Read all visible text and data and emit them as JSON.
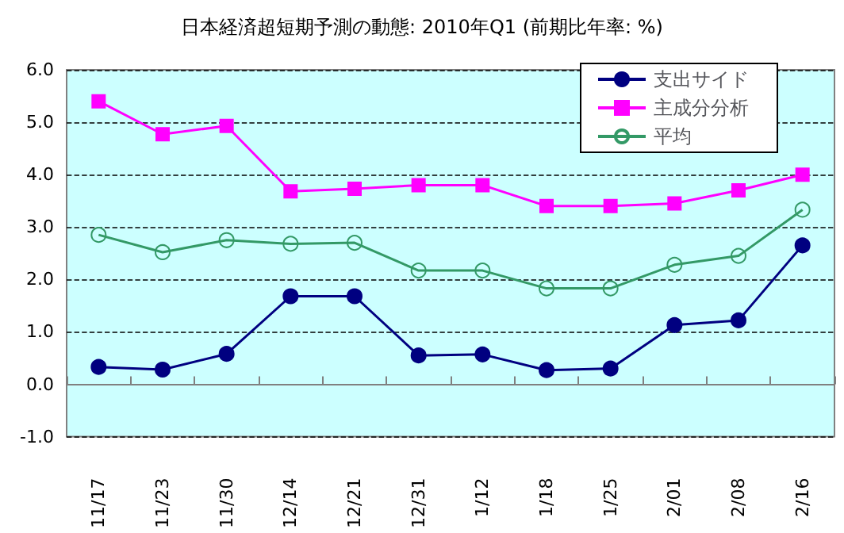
{
  "chart_data": {
    "type": "line",
    "title": "日本経済超短期予測の動態: 2010年Q1 (前期比年率: %)",
    "categories": [
      "11/17",
      "11/23",
      "11/30",
      "12/14",
      "12/21",
      "12/31",
      "1/12",
      "1/18",
      "1/25",
      "2/01",
      "2/08",
      "2/16"
    ],
    "series": [
      {
        "name": "支出サイド",
        "color": "#000080",
        "marker": "circle",
        "values": [
          0.33,
          0.28,
          0.58,
          1.68,
          1.68,
          0.55,
          0.57,
          0.27,
          0.3,
          1.13,
          1.22,
          2.65
        ]
      },
      {
        "name": "主成分分析",
        "color": "#ff00ff",
        "marker": "square",
        "values": [
          5.4,
          4.77,
          4.93,
          3.68,
          3.73,
          3.8,
          3.8,
          3.4,
          3.4,
          3.45,
          3.7,
          4.0
        ]
      },
      {
        "name": "平均",
        "color": "#339966",
        "marker": "emptyCircle",
        "values": [
          2.85,
          2.52,
          2.75,
          2.68,
          2.7,
          2.17,
          2.17,
          1.83,
          1.83,
          2.28,
          2.45,
          3.33
        ]
      }
    ],
    "ylim": [
      -1,
      6
    ],
    "yticks": [
      {
        "value": -1,
        "label": "-1.0"
      },
      {
        "value": 0,
        "label": "0.0"
      },
      {
        "value": 1,
        "label": "1.0"
      },
      {
        "value": 2,
        "label": "2.0"
      },
      {
        "value": 3,
        "label": "3.0"
      },
      {
        "value": 4,
        "label": "4.0"
      },
      {
        "value": 5,
        "label": "5.0"
      },
      {
        "value": 6,
        "label": "6.0"
      }
    ],
    "grid": "y",
    "legend": "top right"
  }
}
